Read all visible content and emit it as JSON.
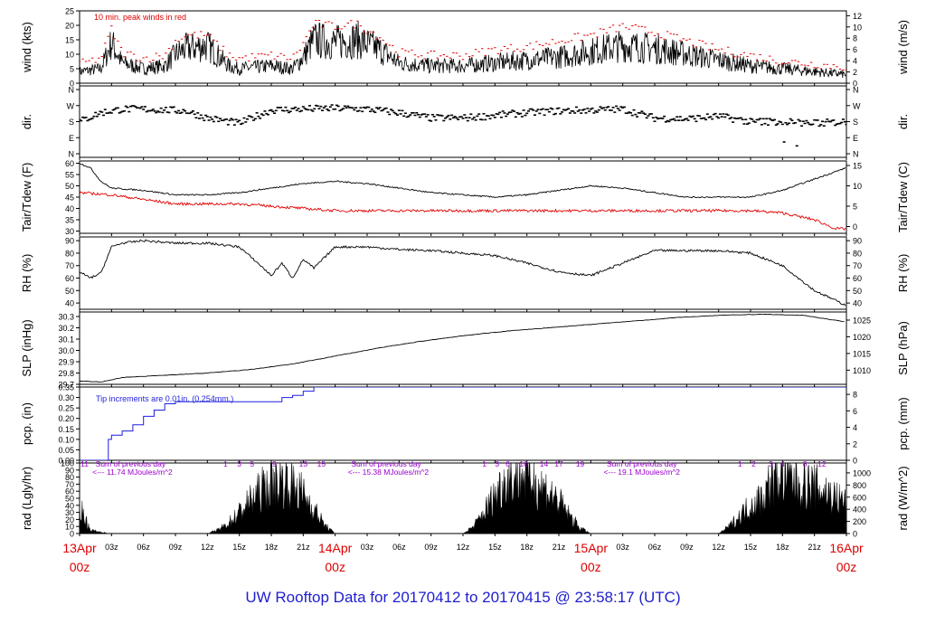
{
  "title": "UW Rooftop Data for 20170412  to  20170415 @ 23:58:17  (UTC)",
  "colors": {
    "black": "#000000",
    "red": "#e00000",
    "blue": "#1f1fe0",
    "purple": "#9900cc",
    "title": "#1e1ecf",
    "day": "#dd0000"
  },
  "chart_data": [
    {
      "type": "line",
      "ylabel": "wind (kts)",
      "ylabel_right": "wind (m/s)",
      "ylim": [
        0,
        25
      ],
      "yticks": [
        0,
        5,
        10,
        15,
        20,
        25
      ],
      "yticks_right": [
        0,
        2,
        4,
        6,
        8,
        10,
        12
      ],
      "annotation": "10 min. peak winds in red",
      "series": [
        {
          "name": "wind",
          "x": [
            0,
            2,
            3,
            4,
            6,
            8,
            9,
            10,
            12,
            14,
            15,
            18,
            20,
            21,
            22,
            24,
            26,
            28,
            30,
            33,
            36,
            39,
            42,
            45,
            48,
            51,
            54,
            57,
            60,
            63,
            66,
            69,
            72
          ],
          "y": [
            4,
            5,
            14,
            7,
            5,
            6,
            10,
            12,
            13,
            6,
            5,
            6,
            5,
            9,
            15,
            14,
            15,
            12,
            7,
            6,
            6,
            7,
            8,
            9,
            11,
            13,
            12,
            10,
            8,
            6,
            5,
            4,
            3
          ]
        },
        {
          "name": "10 min. peak winds",
          "x": [
            0,
            2,
            3,
            4,
            6,
            8,
            9,
            10,
            12,
            14,
            15,
            18,
            20,
            21,
            22,
            24,
            26,
            28,
            30,
            33,
            36,
            39,
            42,
            45,
            48,
            51,
            54,
            57,
            60,
            63,
            66,
            69,
            72
          ],
          "y": [
            6,
            8,
            18,
            10,
            8,
            9,
            14,
            16,
            16,
            9,
            8,
            9,
            8,
            13,
            20,
            19,
            20,
            16,
            10,
            9,
            9,
            11,
            12,
            14,
            16,
            19,
            17,
            14,
            11,
            9,
            7,
            6,
            5
          ]
        }
      ]
    },
    {
      "type": "scatter",
      "ylabel": "dir.",
      "ylabel_right": "dir.",
      "yticks": [
        "N",
        "W",
        "S",
        "E",
        "N"
      ],
      "yticks_right": [
        "N",
        "W",
        "S",
        "E",
        "N"
      ],
      "ylim": [
        0,
        360
      ],
      "series": [
        {
          "name": "direction",
          "x": [
            0,
            2,
            4,
            6,
            8,
            10,
            12,
            14,
            15,
            18,
            21,
            24,
            27,
            30,
            33,
            36,
            39,
            42,
            45,
            48,
            51,
            54,
            57,
            60,
            63,
            66,
            69,
            72
          ],
          "y": [
            180,
            230,
            250,
            250,
            245,
            240,
            200,
            180,
            170,
            245,
            250,
            255,
            250,
            230,
            200,
            200,
            215,
            230,
            240,
            245,
            250,
            200,
            195,
            210,
            180,
            180,
            170,
            180
          ]
        }
      ]
    },
    {
      "type": "line",
      "ylabel": "Tair/Tdew (F)",
      "ylabel_right": "Tair/Tdew (C)",
      "ylim": [
        29,
        61
      ],
      "yticks": [
        30,
        35,
        40,
        45,
        50,
        55,
        60
      ],
      "yticks_right": [
        0,
        5,
        10,
        15
      ],
      "series": [
        {
          "name": "Tair",
          "x": [
            0,
            1,
            2,
            3,
            6,
            9,
            12,
            15,
            18,
            21,
            24,
            27,
            30,
            33,
            36,
            39,
            42,
            45,
            48,
            51,
            54,
            57,
            60,
            63,
            66,
            69,
            72
          ],
          "y": [
            60,
            58,
            52,
            49,
            48,
            46,
            46,
            47,
            49,
            51,
            52,
            51,
            49,
            47,
            46,
            45,
            46,
            48,
            50,
            49,
            47,
            45,
            45,
            45,
            48,
            53,
            58
          ]
        },
        {
          "name": "Tdew",
          "x": [
            0,
            3,
            6,
            9,
            12,
            15,
            18,
            21,
            24,
            27,
            30,
            33,
            36,
            39,
            42,
            45,
            48,
            51,
            54,
            57,
            60,
            63,
            66,
            69,
            71,
            72
          ],
          "y": [
            47,
            46,
            44,
            42,
            42,
            42,
            41,
            40,
            39,
            39,
            39,
            39,
            39,
            39,
            39,
            39,
            39,
            39,
            39,
            39,
            39,
            39,
            38,
            35,
            31,
            31
          ]
        }
      ]
    },
    {
      "type": "line",
      "ylabel": "RH (%)",
      "ylabel_right": "RH (%)",
      "ylim": [
        35,
        93
      ],
      "yticks": [
        40,
        50,
        60,
        70,
        80,
        90
      ],
      "yticks_right": [
        40,
        50,
        60,
        70,
        80,
        90
      ],
      "series": [
        {
          "name": "RH",
          "x": [
            0,
            1,
            2,
            3,
            4,
            6,
            9,
            12,
            15,
            17,
            18,
            19,
            20,
            21,
            22,
            24,
            27,
            30,
            33,
            36,
            39,
            42,
            45,
            48,
            51,
            54,
            57,
            60,
            63,
            66,
            69,
            72
          ],
          "y": [
            65,
            60,
            64,
            85,
            88,
            90,
            88,
            88,
            85,
            70,
            62,
            72,
            60,
            75,
            68,
            85,
            85,
            83,
            82,
            80,
            78,
            72,
            65,
            62,
            72,
            82,
            82,
            82,
            80,
            70,
            50,
            38
          ]
        }
      ]
    },
    {
      "type": "line",
      "ylabel": "SLP (inHg)",
      "ylabel_right": "SLP (hPa)",
      "ylim": [
        29.7,
        30.34
      ],
      "yticks": [
        29.7,
        29.8,
        29.9,
        30.0,
        30.1,
        30.2,
        30.3
      ],
      "yticks_right": [
        1010,
        1015,
        1020,
        1025
      ],
      "series": [
        {
          "name": "SLP",
          "x": [
            0,
            2,
            4,
            8,
            12,
            16,
            20,
            24,
            28,
            32,
            36,
            40,
            44,
            48,
            52,
            56,
            60,
            64,
            68,
            72
          ],
          "y": [
            29.73,
            29.72,
            29.76,
            29.78,
            29.8,
            29.83,
            29.88,
            29.95,
            30.02,
            30.08,
            30.13,
            30.17,
            30.2,
            30.23,
            30.26,
            30.29,
            30.31,
            30.32,
            30.31,
            30.25
          ]
        }
      ]
    },
    {
      "type": "line",
      "ylabel": "pcp. (in)",
      "ylabel_right": "pcp. (mm)",
      "ylim": [
        0,
        0.35
      ],
      "yticks": [
        0,
        0.05,
        0.1,
        0.15,
        0.2,
        0.25,
        0.3,
        0.35
      ],
      "yticks_right": [
        0,
        2,
        4,
        6,
        8
      ],
      "annotation": "Tip increments are 0.01in. (0.254mm.)",
      "series": [
        {
          "name": "precip",
          "x": [
            0,
            2.5,
            2.7,
            3,
            4,
            5,
            6,
            7,
            8,
            9,
            10,
            11,
            12,
            18,
            19,
            20,
            21,
            22,
            24,
            27,
            72
          ],
          "y": [
            0,
            0,
            0.1,
            0.12,
            0.14,
            0.17,
            0.21,
            0.24,
            0.27,
            0.28,
            0.28,
            0.28,
            0.28,
            0.28,
            0.3,
            0.31,
            0.33,
            0.35,
            0.35,
            0.35,
            0.35
          ]
        }
      ]
    },
    {
      "type": "area",
      "ylabel": "rad (Lgly/hr)",
      "ylabel_right": "rad (W/m^2)",
      "ylim": [
        0,
        100
      ],
      "yticks": [
        0,
        10,
        20,
        30,
        40,
        50,
        60,
        70,
        80,
        90,
        100
      ],
      "yticks_right": [
        0,
        200,
        400,
        600,
        800,
        1000
      ],
      "annotations": [
        {
          "hour": "11",
          "x": 0.1
        },
        {
          "text": "Sum of previous day",
          "x": 1.5
        },
        {
          "text": "<--- 11.74 MJoules/m^2",
          "x": 1.2
        },
        {
          "text": "Sum of previous day",
          "x": 25.5
        },
        {
          "text": "<--- 15.38 MJoules/m^2",
          "x": 25.2
        },
        {
          "text": "Sum of previous day",
          "x": 49.5
        },
        {
          "text": "<--- 19.1 MJoules/m^2",
          "x": 49.2
        }
      ],
      "hour_marks": [
        {
          "t": "1",
          "x": 13.7
        },
        {
          "t": "3",
          "x": 15.0
        },
        {
          "t": "5",
          "x": 16.2
        },
        {
          "t": "9",
          "x": 18.3
        },
        {
          "t": "13",
          "x": 21.0
        },
        {
          "t": "15",
          "x": 22.7
        },
        {
          "t": "1",
          "x": 38.0
        },
        {
          "t": "3",
          "x": 39.2
        },
        {
          "t": "6",
          "x": 40.2
        },
        {
          "t": "10",
          "x": 41.7
        },
        {
          "t": "14",
          "x": 43.6
        },
        {
          "t": "17",
          "x": 45.0
        },
        {
          "t": "19",
          "x": 47.0
        },
        {
          "t": "1",
          "x": 62.0
        },
        {
          "t": "2",
          "x": 63.3
        },
        {
          "t": "3",
          "x": 64.9
        },
        {
          "t": "4",
          "x": 66.0
        },
        {
          "t": "8",
          "x": 68.1
        },
        {
          "t": "12",
          "x": 69.7
        }
      ],
      "series": [
        {
          "name": "radiation",
          "x": [
            0,
            1,
            2,
            3,
            12,
            13,
            14,
            15,
            16,
            17,
            18,
            19,
            20,
            21,
            22,
            23,
            24,
            36,
            37,
            38,
            39,
            40,
            41,
            42,
            43,
            44,
            45,
            46,
            47,
            48,
            60,
            61,
            62,
            63,
            64,
            65,
            66,
            67,
            68,
            69,
            70,
            71,
            72
          ],
          "y": [
            40,
            5,
            2,
            0,
            0,
            5,
            15,
            30,
            45,
            60,
            70,
            75,
            70,
            55,
            35,
            12,
            0,
            0,
            10,
            30,
            55,
            75,
            80,
            85,
            70,
            60,
            45,
            25,
            8,
            0,
            0,
            10,
            25,
            40,
            50,
            75,
            80,
            75,
            70,
            65,
            60,
            50,
            45
          ]
        }
      ]
    }
  ],
  "x_axis": {
    "hour_labels": [
      {
        "h": 3,
        "t": "03z"
      },
      {
        "h": 6,
        "t": "06z"
      },
      {
        "h": 9,
        "t": "09z"
      },
      {
        "h": 12,
        "t": "12z"
      },
      {
        "h": 15,
        "t": "15z"
      },
      {
        "h": 18,
        "t": "18z"
      },
      {
        "h": 21,
        "t": "21z"
      },
      {
        "h": 27,
        "t": "03z"
      },
      {
        "h": 30,
        "t": "06z"
      },
      {
        "h": 33,
        "t": "09z"
      },
      {
        "h": 36,
        "t": "12z"
      },
      {
        "h": 39,
        "t": "15z"
      },
      {
        "h": 42,
        "t": "18z"
      },
      {
        "h": 45,
        "t": "21z"
      },
      {
        "h": 51,
        "t": "03z"
      },
      {
        "h": 54,
        "t": "06z"
      },
      {
        "h": 57,
        "t": "09z"
      },
      {
        "h": 60,
        "t": "12z"
      },
      {
        "h": 63,
        "t": "15z"
      },
      {
        "h": 66,
        "t": "18z"
      },
      {
        "h": 69,
        "t": "21z"
      }
    ],
    "day_labels": [
      {
        "h": 0,
        "d": "13Apr",
        "z": "00z"
      },
      {
        "h": 24,
        "d": "14Apr",
        "z": "00z"
      },
      {
        "h": 48,
        "d": "15Apr",
        "z": "00z"
      },
      {
        "h": 72,
        "d": "16Apr",
        "z": "00z"
      }
    ]
  }
}
